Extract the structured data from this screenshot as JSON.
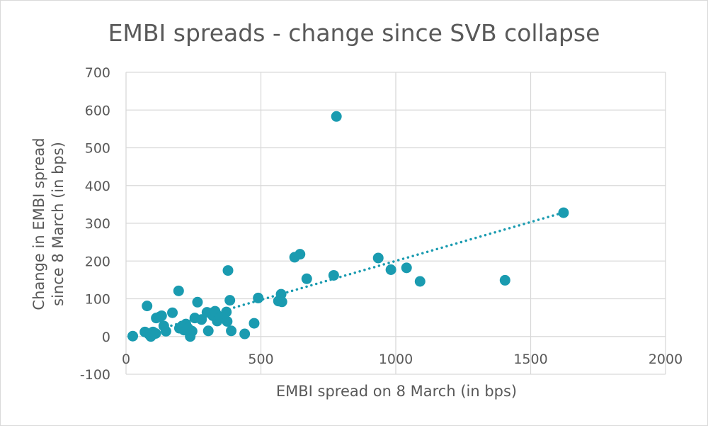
{
  "chart_data": {
    "type": "scatter",
    "title": "EMBI spreads - change since SVB collapse",
    "xlabel": "EMBI spread on 8 March (in bps)",
    "ylabel_line1": "Change in EMBI spread",
    "ylabel_line2": "since 8 March (in bps)",
    "xlim": [
      0,
      2000
    ],
    "ylim": [
      -100,
      700
    ],
    "xticks": [
      0,
      500,
      1000,
      1500,
      2000
    ],
    "yticks": [
      -100,
      0,
      100,
      200,
      300,
      400,
      500,
      600,
      700
    ],
    "grid": true,
    "legend": "none",
    "marker_color": "#1a9bb0",
    "trendline": {
      "type": "linear",
      "style": "dotted",
      "x_start": 150,
      "x_end": 1620,
      "y_start": 25,
      "y_end": 328
    },
    "points": [
      {
        "x": 25,
        "y": 1
      },
      {
        "x": 70,
        "y": 12
      },
      {
        "x": 78,
        "y": 81
      },
      {
        "x": 85,
        "y": 6
      },
      {
        "x": 92,
        "y": 0
      },
      {
        "x": 100,
        "y": 12
      },
      {
        "x": 110,
        "y": 8
      },
      {
        "x": 112,
        "y": 49
      },
      {
        "x": 125,
        "y": 52
      },
      {
        "x": 132,
        "y": 55
      },
      {
        "x": 140,
        "y": 28
      },
      {
        "x": 148,
        "y": 14
      },
      {
        "x": 172,
        "y": 63
      },
      {
        "x": 195,
        "y": 121
      },
      {
        "x": 198,
        "y": 22
      },
      {
        "x": 208,
        "y": 28
      },
      {
        "x": 215,
        "y": 17
      },
      {
        "x": 222,
        "y": 33
      },
      {
        "x": 230,
        "y": 22
      },
      {
        "x": 238,
        "y": 0
      },
      {
        "x": 245,
        "y": 14
      },
      {
        "x": 255,
        "y": 49
      },
      {
        "x": 265,
        "y": 91
      },
      {
        "x": 280,
        "y": 45
      },
      {
        "x": 300,
        "y": 64
      },
      {
        "x": 305,
        "y": 15
      },
      {
        "x": 315,
        "y": 62
      },
      {
        "x": 322,
        "y": 55
      },
      {
        "x": 330,
        "y": 67
      },
      {
        "x": 338,
        "y": 41
      },
      {
        "x": 350,
        "y": 52
      },
      {
        "x": 372,
        "y": 65
      },
      {
        "x": 375,
        "y": 40
      },
      {
        "x": 378,
        "y": 175
      },
      {
        "x": 385,
        "y": 96
      },
      {
        "x": 390,
        "y": 15
      },
      {
        "x": 440,
        "y": 7
      },
      {
        "x": 475,
        "y": 35
      },
      {
        "x": 490,
        "y": 102
      },
      {
        "x": 565,
        "y": 94
      },
      {
        "x": 575,
        "y": 112
      },
      {
        "x": 578,
        "y": 92
      },
      {
        "x": 625,
        "y": 210
      },
      {
        "x": 645,
        "y": 218
      },
      {
        "x": 670,
        "y": 153
      },
      {
        "x": 770,
        "y": 162
      },
      {
        "x": 780,
        "y": 583
      },
      {
        "x": 935,
        "y": 208
      },
      {
        "x": 982,
        "y": 177
      },
      {
        "x": 1040,
        "y": 182
      },
      {
        "x": 1090,
        "y": 146
      },
      {
        "x": 1405,
        "y": 149
      },
      {
        "x": 1622,
        "y": 328
      }
    ]
  }
}
